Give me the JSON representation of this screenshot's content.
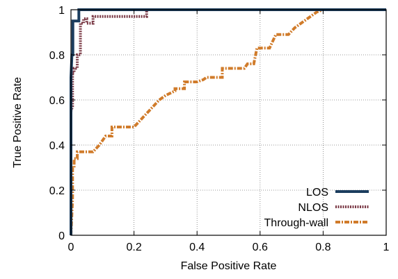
{
  "chart_data": {
    "type": "line",
    "title": "",
    "xlabel": "False Positive Rate",
    "ylabel": "True Positive Rate",
    "xlim": [
      0,
      1
    ],
    "ylim": [
      0,
      1
    ],
    "xticks": [
      0,
      0.2,
      0.4,
      0.6,
      0.8,
      1
    ],
    "xtick_labels": [
      "0",
      "0.2",
      "0.4",
      "0.6",
      "0.8",
      "1"
    ],
    "yticks": [
      0,
      0.2,
      0.4,
      0.6,
      0.8,
      1
    ],
    "ytick_labels": [
      "0",
      "0.2",
      "0.4",
      "0.6",
      "0.8",
      "1"
    ],
    "grid": true,
    "legend_position": "bottom-right",
    "series": [
      {
        "name": "LOS",
        "color": "#1b3d5e",
        "style": "solid",
        "x": [
          0,
          0,
          0.003,
          0.006,
          0.006,
          0.025,
          0.025,
          1
        ],
        "y": [
          0,
          0.7,
          0.8,
          0.8,
          0.95,
          0.95,
          1.0,
          1.0
        ]
      },
      {
        "name": "NLOS",
        "color": "#7b3b47",
        "style": "dotted",
        "x": [
          0,
          0,
          0.005,
          0.005,
          0.01,
          0.01,
          0.02,
          0.02,
          0.03,
          0.03,
          0.04,
          0.04,
          0.05,
          0.05,
          0.07,
          0.07,
          0.24,
          0.24,
          1
        ],
        "y": [
          0,
          0.55,
          0.57,
          0.72,
          0.72,
          0.74,
          0.74,
          0.8,
          0.8,
          0.94,
          0.94,
          0.96,
          0.96,
          0.94,
          0.94,
          0.97,
          0.97,
          1.0,
          1.0
        ]
      },
      {
        "name": "Through-wall",
        "color": "#d07b2a",
        "style": "dash-dot",
        "x": [
          0,
          0.005,
          0.005,
          0.01,
          0.01,
          0.02,
          0.02,
          0.07,
          0.09,
          0.11,
          0.13,
          0.13,
          0.2,
          0.22,
          0.26,
          0.28,
          0.3,
          0.33,
          0.33,
          0.36,
          0.36,
          0.4,
          0.42,
          0.43,
          0.44,
          0.48,
          0.48,
          0.55,
          0.56,
          0.58,
          0.59,
          0.63,
          0.65,
          0.69,
          0.71,
          0.74,
          0.76,
          0.78,
          0.8,
          1
        ],
        "y": [
          0,
          0.16,
          0.3,
          0.3,
          0.34,
          0.34,
          0.37,
          0.37,
          0.4,
          0.44,
          0.44,
          0.48,
          0.48,
          0.51,
          0.57,
          0.6,
          0.62,
          0.64,
          0.65,
          0.65,
          0.68,
          0.68,
          0.69,
          0.7,
          0.7,
          0.7,
          0.74,
          0.74,
          0.76,
          0.76,
          0.83,
          0.83,
          0.89,
          0.89,
          0.92,
          0.95,
          0.97,
          0.99,
          1.0,
          1.0
        ]
      }
    ]
  }
}
